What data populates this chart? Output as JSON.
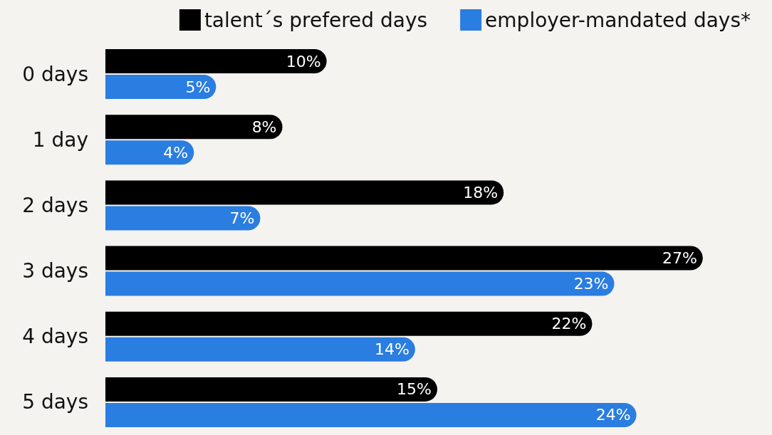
{
  "chart_data": {
    "type": "bar",
    "orientation": "horizontal",
    "categories": [
      "0 days",
      "1 day",
      "2 days",
      "3 days",
      "4 days",
      "5 days"
    ],
    "series": [
      {
        "name": "talent´s prefered days",
        "color": "#000000",
        "values": [
          10,
          8,
          18,
          27,
          22,
          15
        ],
        "value_labels": [
          "10%",
          "8%",
          "18%",
          "27%",
          "22%",
          "15%"
        ]
      },
      {
        "name": "employer-mandated days*",
        "color": "#2a7de1",
        "values": [
          5,
          4,
          7,
          23,
          14,
          24
        ],
        "value_labels": [
          "5%",
          "4%",
          "7%",
          "23%",
          "14%",
          "24%"
        ]
      }
    ],
    "legend": "top right"
  }
}
